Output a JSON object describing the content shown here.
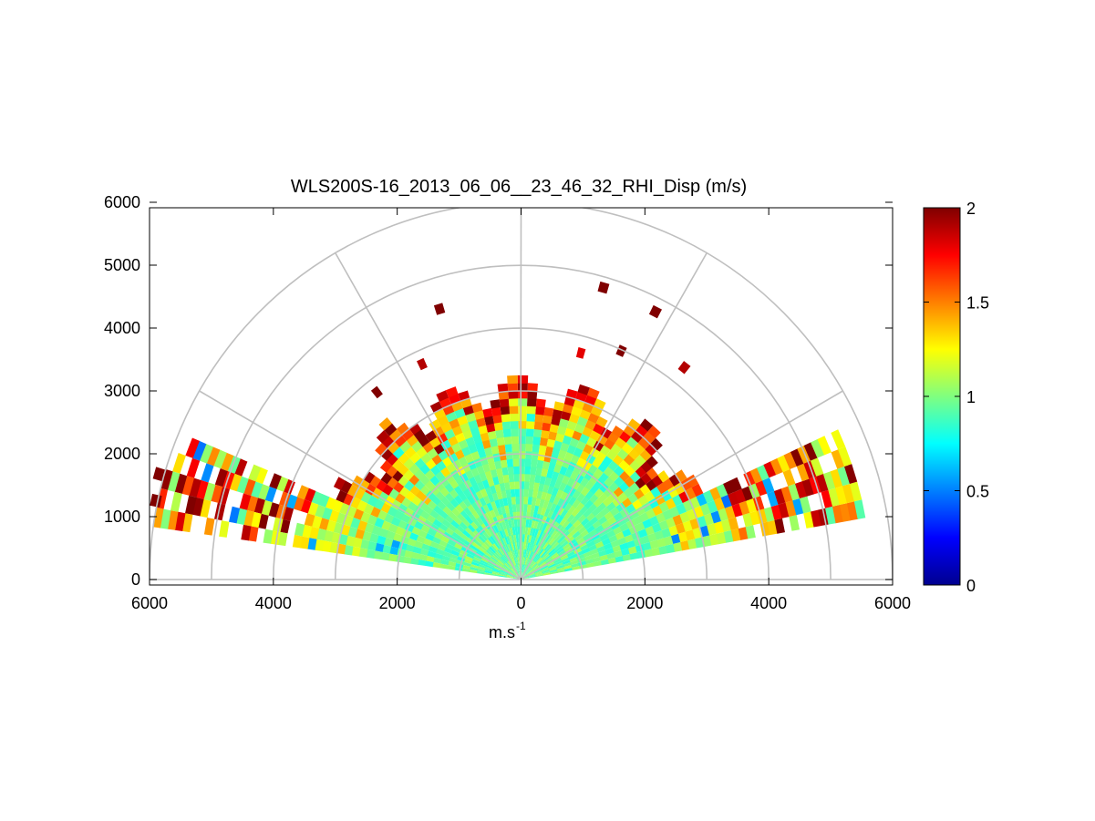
{
  "chart_data": {
    "type": "heatmap",
    "subtype": "polar-rhi-scan",
    "title": "WLS200S-16_2013_06_06__23_46_32_RHI_Disp (m/s)",
    "xlabel": "m.s",
    "xlabel_superscript": "-1",
    "ylabel": "",
    "xlim": [
      -6000,
      6000
    ],
    "ylim": [
      0,
      6000
    ],
    "x_ticks": [
      -6000,
      -4000,
      -2000,
      0,
      2000,
      4000,
      6000
    ],
    "x_tick_labels": [
      "6000",
      "4000",
      "2000",
      "0",
      "2000",
      "4000",
      "6000"
    ],
    "y_ticks": [
      0,
      1000,
      2000,
      3000,
      4000,
      5000,
      6000
    ],
    "y_tick_labels": [
      "0",
      "1000",
      "2000",
      "3000",
      "4000",
      "5000",
      "6000"
    ],
    "polar_grid": {
      "range_rings": [
        1000,
        2000,
        3000,
        4000,
        5000,
        6000
      ],
      "spoke_angles_deg": [
        0,
        30,
        60,
        90,
        120,
        150,
        180
      ]
    },
    "colorbar": {
      "colormap": "jet",
      "range": [
        0,
        2
      ],
      "ticks": [
        0,
        0.5,
        1,
        1.5,
        2
      ],
      "tick_labels": [
        "0",
        "0.5",
        "1",
        "1.5",
        "2"
      ]
    },
    "data_extent": {
      "range_gate_m": 120,
      "beam_step_deg": 3,
      "left_sector_elevation_deg": [
        10,
        24
      ],
      "right_sector_elevation_deg": [
        10,
        25
      ],
      "typical_value": 0.95,
      "high_values_near_range_m": [
        2600,
        5800
      ],
      "max_value": 2
    },
    "sparse_gates": [
      {
        "angle_deg": 63,
        "range_m": 4700,
        "value": 2
      },
      {
        "angle_deg": 74,
        "range_m": 4750,
        "value": 2
      },
      {
        "angle_deg": 107,
        "range_m": 4420,
        "value": 2
      },
      {
        "angle_deg": 128,
        "range_m": 3700,
        "value": 2
      },
      {
        "angle_deg": 115,
        "range_m": 3700,
        "value": 1.9
      },
      {
        "angle_deg": 75,
        "range_m": 3650,
        "value": 1.8
      },
      {
        "angle_deg": 66,
        "range_m": 3900,
        "value": 2
      },
      {
        "angle_deg": 52,
        "range_m": 4200,
        "value": 1.9
      },
      {
        "angle_deg": 164,
        "range_m": 6000,
        "value": 2
      },
      {
        "angle_deg": 168,
        "range_m": 5950,
        "value": 2
      }
    ]
  }
}
